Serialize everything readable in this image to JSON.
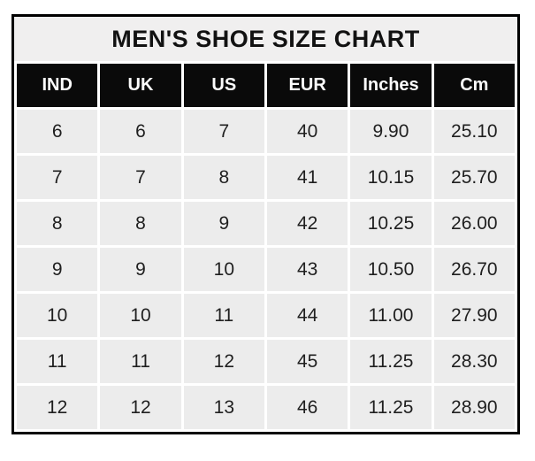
{
  "table": {
    "title": "MEN'S SHOE SIZE CHART",
    "columns": [
      "IND",
      "UK",
      "US",
      "EUR",
      "Inches",
      "Cm"
    ],
    "rows": [
      [
        "6",
        "6",
        "7",
        "40",
        "9.90",
        "25.10"
      ],
      [
        "7",
        "7",
        "8",
        "41",
        "10.15",
        "25.70"
      ],
      [
        "8",
        "8",
        "9",
        "42",
        "10.25",
        "26.00"
      ],
      [
        "9",
        "9",
        "10",
        "43",
        "10.50",
        "26.70"
      ],
      [
        "10",
        "10",
        "11",
        "44",
        "11.00",
        "27.90"
      ],
      [
        "11",
        "11",
        "12",
        "45",
        "11.25",
        "28.30"
      ],
      [
        "12",
        "12",
        "13",
        "46",
        "11.25",
        "28.90"
      ]
    ],
    "colors": {
      "border": "#000000",
      "title_bg": "#f0efef",
      "header_bg": "#0a0a0a",
      "header_text": "#fcfcfc",
      "cell_bg": "#ececec",
      "cell_text": "#1f1f1f",
      "separator": "#ffffff"
    }
  },
  "chart_data": {
    "type": "table",
    "title": "MEN'S SHOE SIZE CHART",
    "columns": [
      "IND",
      "UK",
      "US",
      "EUR",
      "Inches",
      "Cm"
    ],
    "rows": [
      [
        6,
        6,
        7,
        40,
        9.9,
        25.1
      ],
      [
        7,
        7,
        8,
        41,
        10.15,
        25.7
      ],
      [
        8,
        8,
        9,
        42,
        10.25,
        26.0
      ],
      [
        9,
        9,
        10,
        43,
        10.5,
        26.7
      ],
      [
        10,
        10,
        11,
        44,
        11.0,
        27.9
      ],
      [
        11,
        11,
        12,
        45,
        11.25,
        28.3
      ],
      [
        12,
        12,
        13,
        46,
        11.25,
        28.9
      ]
    ],
    "layout": {
      "header_style": "black-band-white-text",
      "grid": "white-separators-on-gray-cells",
      "outer_border": "thick-black"
    }
  }
}
